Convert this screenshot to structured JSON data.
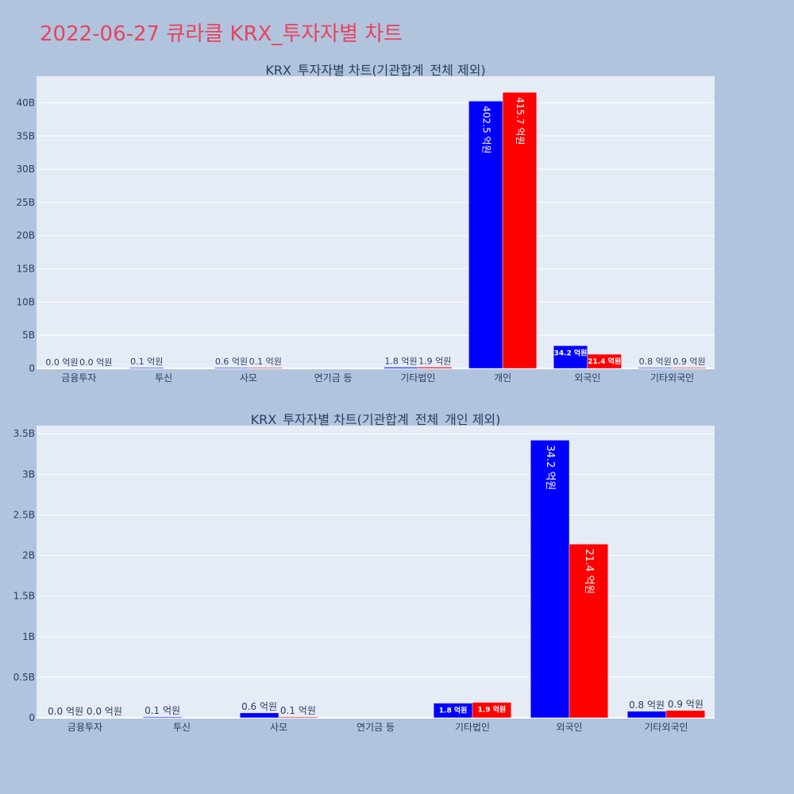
{
  "page": {
    "title": "2022-06-27 큐라클 KRX_투자자별 차트",
    "background": "#b0c4de",
    "title_color": "#e8435e",
    "plot_bg": "#e5ecf6",
    "grid_color": "#ffffff",
    "series_colors": [
      "#0000ff",
      "#ff0000"
    ]
  },
  "chart_data": [
    {
      "type": "bar",
      "title": "KRX_투자자별 차트(기관합계_전체 제외)",
      "categories": [
        "금융투자",
        "투신",
        "사모",
        "연기금 등",
        "기타법인",
        "개인",
        "외국인",
        "기타외국인"
      ],
      "series": [
        {
          "values": [
            0,
            10000000,
            60000000,
            0,
            180000000,
            40250000000,
            3420000000,
            80000000
          ],
          "labels": [
            "0.0 억원",
            "0.1 억원",
            "0.6 억원",
            "",
            "1.8 억원",
            "402.5 억원",
            "34.2 억원",
            "0.8 억원"
          ]
        },
        {
          "values": [
            0,
            0,
            10000000,
            0,
            190000000,
            41570000000,
            2140000000,
            90000000
          ],
          "labels": [
            "0.0 억원",
            "",
            "0.1 억원",
            "",
            "1.9 억원",
            "415.7 억원",
            "21.4 억원",
            "0.9 억원"
          ]
        }
      ],
      "yticks": [
        {
          "value": 0,
          "label": "0"
        },
        {
          "value": 5000000000,
          "label": "5B"
        },
        {
          "value": 10000000000,
          "label": "10B"
        },
        {
          "value": 15000000000,
          "label": "15B"
        },
        {
          "value": 20000000000,
          "label": "20B"
        },
        {
          "value": 25000000000,
          "label": "25B"
        },
        {
          "value": 30000000000,
          "label": "30B"
        },
        {
          "value": 35000000000,
          "label": "35B"
        },
        {
          "value": 40000000000,
          "label": "40B"
        }
      ],
      "ylim": [
        0,
        44000000000
      ],
      "grid": true,
      "xlabel": "",
      "ylabel": ""
    },
    {
      "type": "bar",
      "title": "KRX_투자자별 차트(기관합계_전체_개인 제외)",
      "categories": [
        "금융투자",
        "투신",
        "사모",
        "연기금 등",
        "기타법인",
        "외국인",
        "기타외국인"
      ],
      "series": [
        {
          "values": [
            0,
            10000000,
            60000000,
            0,
            180000000,
            3420000000,
            80000000
          ],
          "labels": [
            "0.0 억원",
            "0.1 억원",
            "0.6 억원",
            "",
            "1.8 억원",
            "34.2 억원",
            "0.8 억원"
          ]
        },
        {
          "values": [
            0,
            0,
            10000000,
            0,
            190000000,
            2140000000,
            90000000
          ],
          "labels": [
            "0.0 억원",
            "",
            "0.1 억원",
            "",
            "1.9 억원",
            "21.4 억원",
            "0.9 억원"
          ]
        }
      ],
      "yticks": [
        {
          "value": 0,
          "label": "0"
        },
        {
          "value": 500000000,
          "label": "0.5B"
        },
        {
          "value": 1000000000,
          "label": "1B"
        },
        {
          "value": 1500000000,
          "label": "1.5B"
        },
        {
          "value": 2000000000,
          "label": "2B"
        },
        {
          "value": 2500000000,
          "label": "2.5B"
        },
        {
          "value": 3000000000,
          "label": "3B"
        },
        {
          "value": 3500000000,
          "label": "3.5B"
        }
      ],
      "ylim": [
        0,
        3600000000
      ],
      "grid": true,
      "xlabel": "",
      "ylabel": ""
    }
  ]
}
